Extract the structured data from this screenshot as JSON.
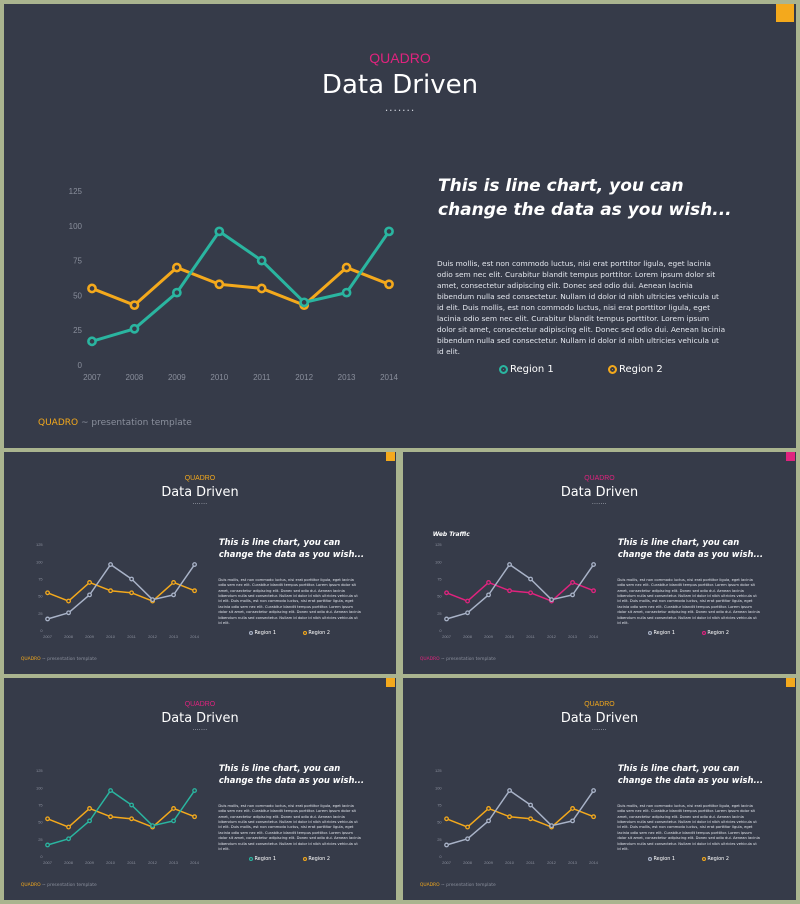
{
  "common": {
    "brand": "QUADRO",
    "title": "Data Driven",
    "dots": ".......",
    "headline_line1": "This is line chart, you can",
    "headline_line2": "change the data as you wish...",
    "body": "Duis mollis, est non commodo luctus, nisi erat porttitor ligula, eget lacinia odio sem nec elit. Curabitur blandit tempus porttitor. Lorem ipsum dolor sit amet, consectetur adipiscing elit. Donec sed odio dui. Aenean lacinia bibendum nulla sed consectetur.  Nullam id dolor id nibh ultricies vehicula ut id elit. Duis mollis, est non commodo luctus, nisi erat porttitor ligula, eget lacinia odio sem nec elit. Curabitur blandit tempus porttitor.  Lorem ipsum dolor sit amet, consectetur  adipiscing elit. Donec sed odio dui. Aenean lacinia bibendum nulla sed consectetur.  Nullam id dolor id nibh ultricies vehicula ut id elit.",
    "legend1": "Region 1",
    "legend2": "Region 2",
    "footer_brand": "QUADRO",
    "footer_sep": " ~ ",
    "footer_text": "presentation template",
    "subtitle_web": "Web Traffic"
  },
  "colors": {
    "teal": "#2ab5a0",
    "orange": "#f4a91c",
    "pink": "#e0237e",
    "gray": "#a9b3c8",
    "axis": "#8a8f9c"
  },
  "chart_data": [
    {
      "type": "line",
      "slide": "main",
      "x": [
        "2007",
        "2008",
        "2009",
        "2010",
        "2011",
        "2012",
        "2013",
        "2014"
      ],
      "yticks": [
        0,
        25,
        50,
        75,
        100,
        125
      ],
      "ylim": [
        0,
        125
      ],
      "series": [
        {
          "name": "Region 1",
          "color": "#2ab5a0",
          "values": [
            17,
            26,
            52,
            96,
            75,
            45,
            52,
            96
          ]
        },
        {
          "name": "Region 2",
          "color": "#f4a91c",
          "values": [
            55,
            43,
            70,
            58,
            55,
            43,
            70,
            58
          ]
        }
      ]
    },
    {
      "type": "line",
      "slide": "top-left",
      "x": [
        "2007",
        "2008",
        "2009",
        "2010",
        "2011",
        "2012",
        "2013",
        "2014"
      ],
      "yticks": [
        0,
        25,
        50,
        75,
        100,
        125
      ],
      "ylim": [
        0,
        125
      ],
      "series": [
        {
          "name": "Region 1",
          "color": "#a9b3c8",
          "values": [
            17,
            26,
            52,
            96,
            75,
            45,
            52,
            96
          ]
        },
        {
          "name": "Region 2",
          "color": "#f4a91c",
          "values": [
            55,
            43,
            70,
            58,
            55,
            43,
            70,
            58
          ]
        }
      ]
    },
    {
      "type": "line",
      "slide": "top-right",
      "x": [
        "2007",
        "2008",
        "2009",
        "2010",
        "2011",
        "2012",
        "2013",
        "2014"
      ],
      "yticks": [
        0,
        25,
        50,
        75,
        100,
        125
      ],
      "ylim": [
        0,
        125
      ],
      "series": [
        {
          "name": "Region 1",
          "color": "#a9b3c8",
          "values": [
            17,
            26,
            52,
            96,
            75,
            45,
            52,
            96
          ]
        },
        {
          "name": "Region 2",
          "color": "#e0237e",
          "values": [
            55,
            43,
            70,
            58,
            55,
            43,
            70,
            58
          ]
        }
      ]
    },
    {
      "type": "line",
      "slide": "bottom-left",
      "x": [
        "2007",
        "2008",
        "2009",
        "2010",
        "2011",
        "2012",
        "2013",
        "2014"
      ],
      "yticks": [
        0,
        25,
        50,
        75,
        100,
        125
      ],
      "ylim": [
        0,
        125
      ],
      "series": [
        {
          "name": "Region 1",
          "color": "#2ab5a0",
          "values": [
            17,
            26,
            52,
            96,
            75,
            45,
            52,
            96
          ]
        },
        {
          "name": "Region 2",
          "color": "#f4a91c",
          "values": [
            55,
            43,
            70,
            58,
            55,
            43,
            70,
            58
          ]
        }
      ]
    },
    {
      "type": "line",
      "slide": "bottom-right",
      "x": [
        "2007",
        "2008",
        "2009",
        "2010",
        "2011",
        "2012",
        "2013",
        "2014"
      ],
      "yticks": [
        0,
        25,
        50,
        75,
        100,
        125
      ],
      "ylim": [
        0,
        125
      ],
      "series": [
        {
          "name": "Region 1",
          "color": "#a9b3c8",
          "values": [
            17,
            26,
            52,
            96,
            75,
            45,
            52,
            96
          ]
        },
        {
          "name": "Region 2",
          "color": "#f4a91c",
          "values": [
            55,
            43,
            70,
            58,
            55,
            43,
            70,
            58
          ]
        }
      ]
    }
  ],
  "slides": [
    {
      "id": "main",
      "brand_color": "#e0237e",
      "accent": "#f4a91c",
      "footer_brand_color": "#f4a91c",
      "legend1_color": "#2ab5a0",
      "legend2_color": "#f4a91c",
      "show_web": false
    },
    {
      "id": "top-left",
      "brand_color": "#f4a91c",
      "accent": "#f4a91c",
      "footer_brand_color": "#f4a91c",
      "legend1_color": "#a9b3c8",
      "legend2_color": "#f4a91c",
      "show_web": false
    },
    {
      "id": "top-right",
      "brand_color": "#e0237e",
      "accent": "#e0237e",
      "footer_brand_color": "#e0237e",
      "legend1_color": "#a9b3c8",
      "legend2_color": "#e0237e",
      "show_web": true
    },
    {
      "id": "bottom-left",
      "brand_color": "#e0237e",
      "accent": "#f4a91c",
      "footer_brand_color": "#f4a91c",
      "legend1_color": "#2ab5a0",
      "legend2_color": "#f4a91c",
      "show_web": false
    },
    {
      "id": "bottom-right",
      "brand_color": "#f4a91c",
      "accent": "#f4a91c",
      "footer_brand_color": "#f4a91c",
      "legend1_color": "#a9b3c8",
      "legend2_color": "#f4a91c",
      "show_web": false
    }
  ]
}
